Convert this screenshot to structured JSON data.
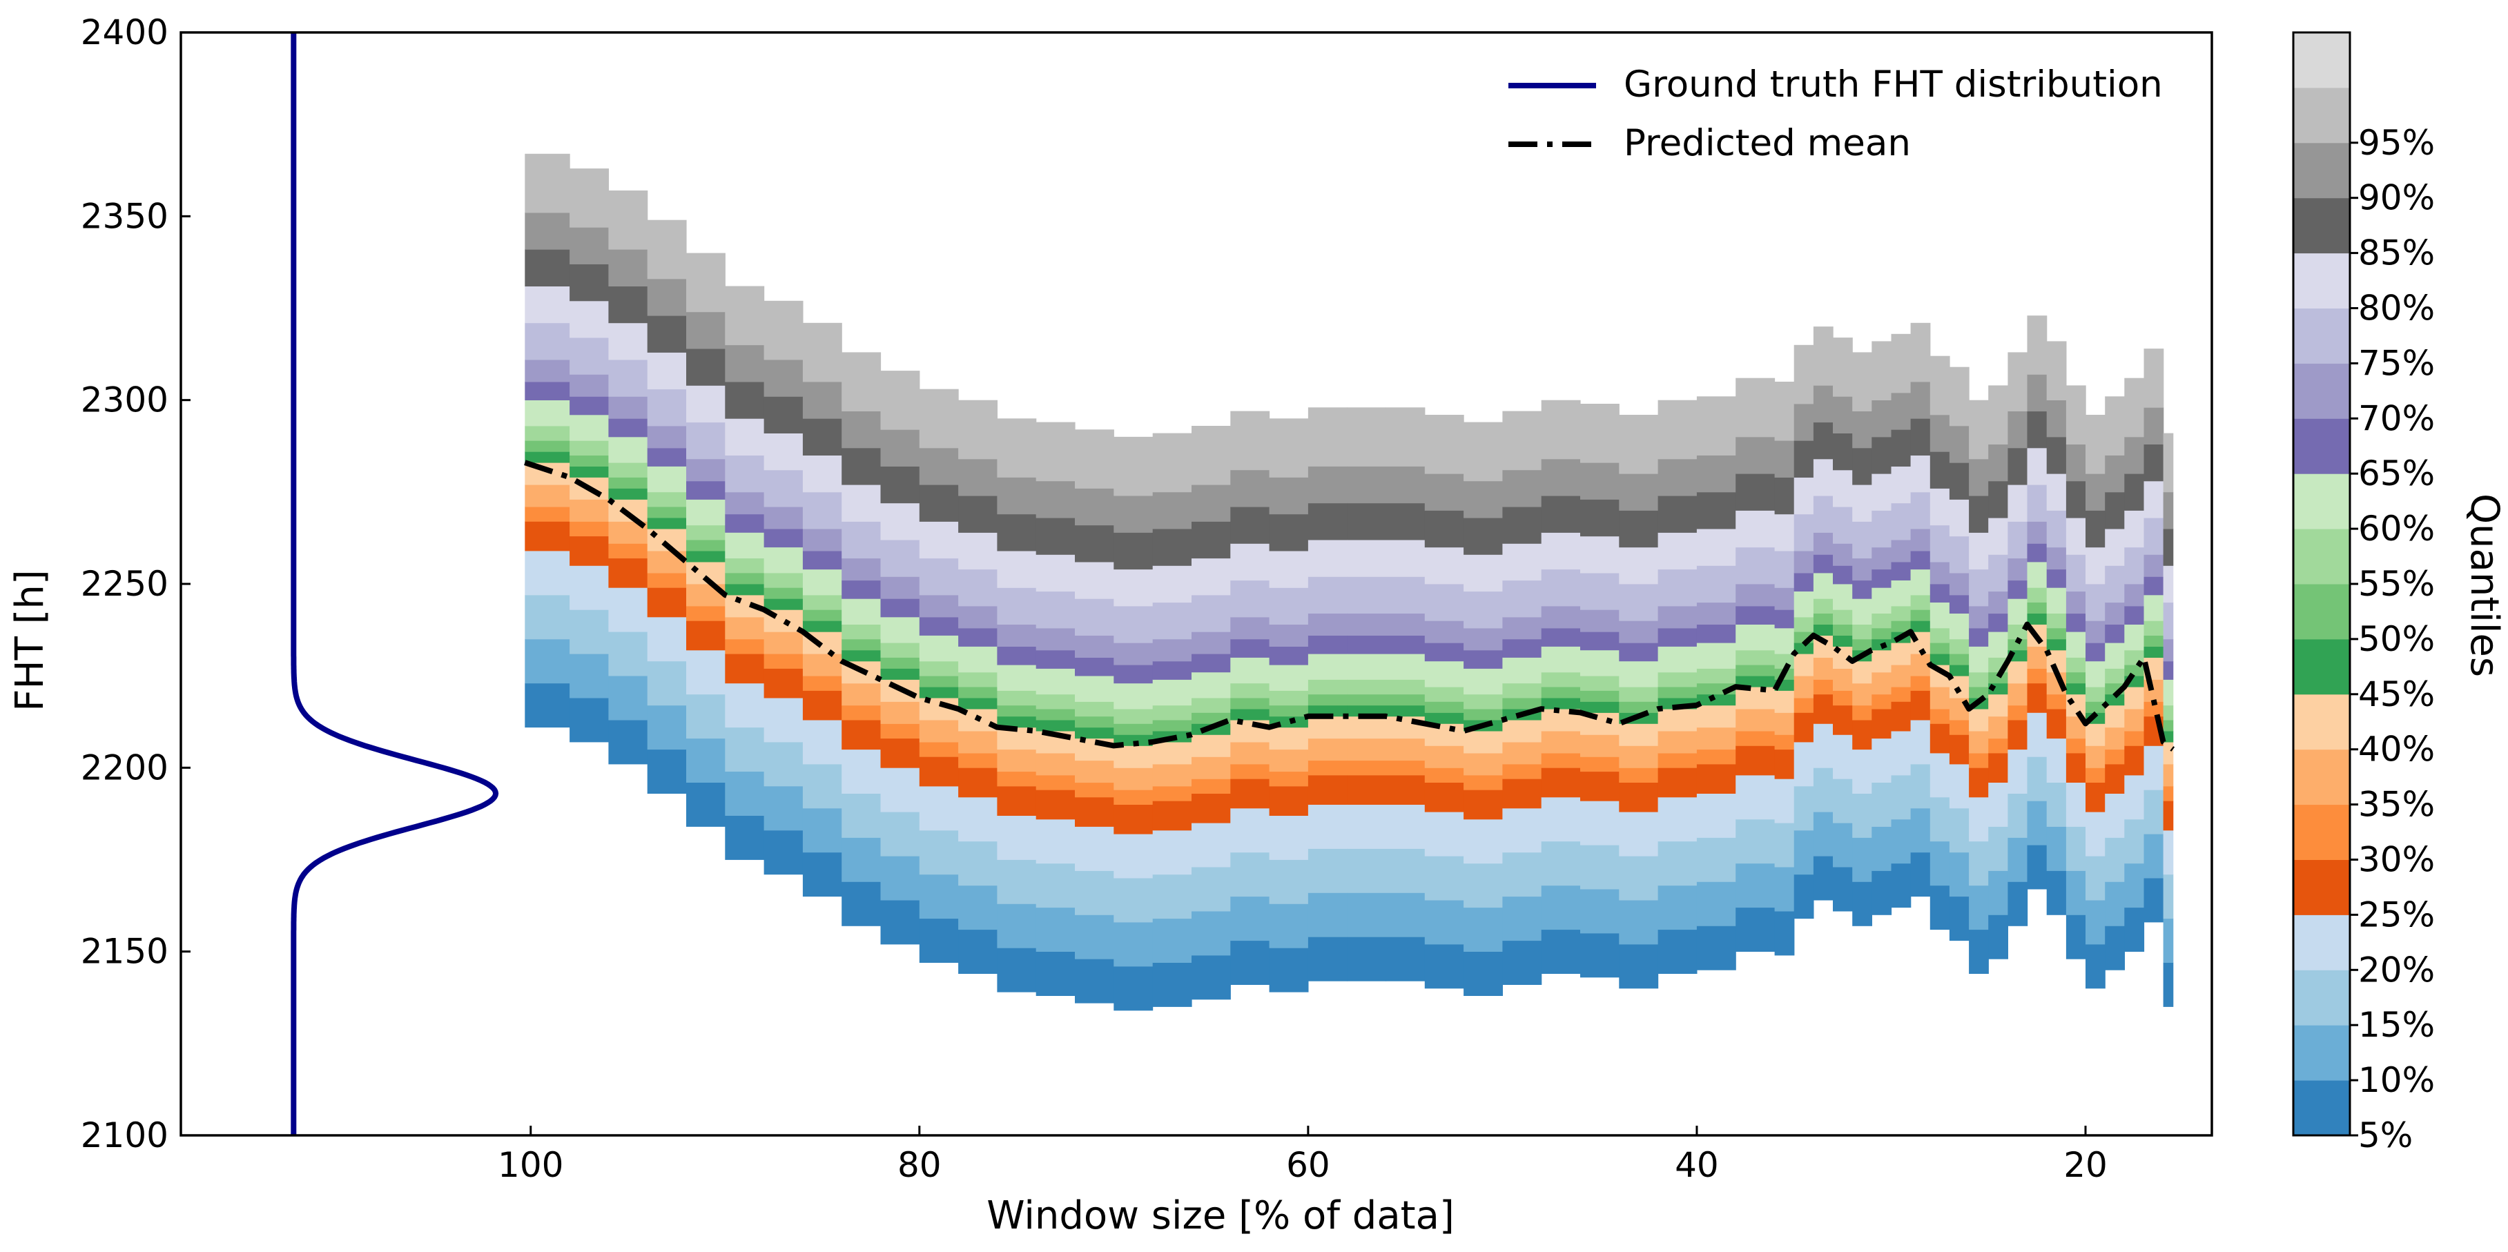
{
  "chart_data": {
    "type": "area",
    "title": "",
    "xlabel": "Window size [% of data]",
    "ylabel": "FHT [h]",
    "xlim": [
      118,
      13.5
    ],
    "ylim": [
      2100,
      2400
    ],
    "x_ticks": [
      100,
      80,
      60,
      40,
      20
    ],
    "y_ticks": [
      2100,
      2150,
      2200,
      2250,
      2300,
      2350,
      2400
    ],
    "legend": {
      "position": "top-right",
      "entries": [
        {
          "label": "Ground truth FHT distribution",
          "style": "solid",
          "color": "#00008B"
        },
        {
          "label": "Predicted mean",
          "style": "dash-dot",
          "color": "#000000"
        }
      ]
    },
    "colorbar": {
      "label": "Quantiles",
      "tick_labels": [
        "5%",
        "10%",
        "15%",
        "20%",
        "25%",
        "30%",
        "35%",
        "40%",
        "45%",
        "50%",
        "55%",
        "60%",
        "65%",
        "70%",
        "75%",
        "80%",
        "85%",
        "90%",
        "95%"
      ],
      "colors": [
        "#3182bd",
        "#6baed6",
        "#9ecae1",
        "#c6dbef",
        "#e6550d",
        "#fd8d3c",
        "#fdae6b",
        "#fdd0a2",
        "#31a354",
        "#74c476",
        "#a1d99b",
        "#c7e9c0",
        "#756bb1",
        "#9e9ac8",
        "#bcbddc",
        "#dadaeb",
        "#636363",
        "#969696",
        "#bdbdbd",
        "#d9d9d9"
      ]
    },
    "ground_truth": {
      "name": "Ground truth FHT distribution",
      "mean": 2193,
      "std": 9,
      "baseline_x": 112.2,
      "peak_x": 101.8
    },
    "series": [
      {
        "name": "Predicted mean",
        "x": [
          100.3,
          98.0,
          96.0,
          94.0,
          92.0,
          90.0,
          88.0,
          86.0,
          84.0,
          82.0,
          80.0,
          78.0,
          76.0,
          74.0,
          72.0,
          70.0,
          68.0,
          66.0,
          64.0,
          62.0,
          60.0,
          58.0,
          56.0,
          54.0,
          52.0,
          50.0,
          48.0,
          46.0,
          44.0,
          42.0,
          40.0,
          38.0,
          36.0,
          35.0,
          34.0,
          33.0,
          32.0,
          31.0,
          30.0,
          29.0,
          28.0,
          27.0,
          26.0,
          25.0,
          24.0,
          23.0,
          22.0,
          21.0,
          20.0,
          19.0,
          18.0,
          17.0,
          16.0,
          15.5
        ],
        "values": [
          2283,
          2279,
          2273,
          2265,
          2256,
          2247,
          2243,
          2237,
          2229,
          2224,
          2219,
          2216,
          2211,
          2210,
          2208,
          2206,
          2207,
          2209,
          2213,
          2211,
          2214,
          2214,
          2214,
          2212,
          2210,
          2213,
          2216,
          2215,
          2212,
          2216,
          2217,
          2222,
          2221,
          2231,
          2236,
          2233,
          2229,
          2232,
          2234,
          2237,
          2228,
          2225,
          2216,
          2220,
          2229,
          2239,
          2232,
          2220,
          2212,
          2217,
          2222,
          2230,
          2207,
          2205
        ]
      }
    ],
    "quantile_offsets": [
      -72,
      -60,
      -48,
      -36,
      -24,
      -16,
      -12,
      -6,
      0,
      3,
      6,
      10,
      17,
      22,
      28,
      38,
      48,
      58,
      68,
      84
    ]
  }
}
